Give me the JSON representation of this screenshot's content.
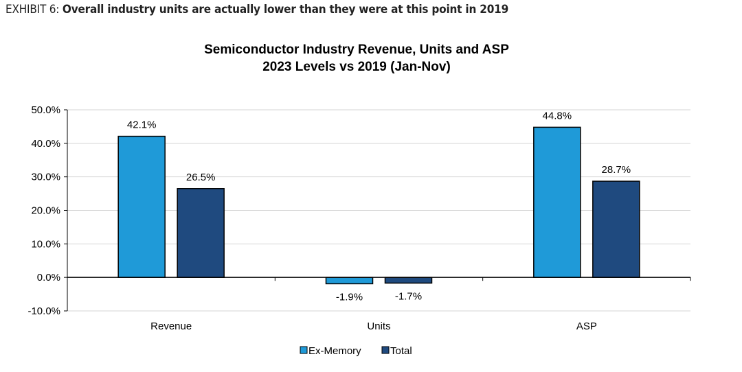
{
  "exhibit": {
    "label": "EXHIBIT 6:",
    "headline": "Overall industry units are actually lower than they were at this point in 2019"
  },
  "chart_data": {
    "type": "bar",
    "title": "Semiconductor Industry Revenue, Units and ASP",
    "subtitle": "2023 Levels vs 2019 (Jan-Nov)",
    "categories": [
      "Revenue",
      "Units",
      "ASP"
    ],
    "series": [
      {
        "name": "Ex-Memory",
        "values": [
          42.1,
          -1.9,
          44.8
        ],
        "labels": [
          "42.1%",
          "-1.9%",
          "44.8%"
        ],
        "color": "#1f9ad8"
      },
      {
        "name": "Total",
        "values": [
          26.5,
          -1.7,
          28.7
        ],
        "labels": [
          "26.5%",
          "-1.7%",
          "28.7%"
        ],
        "color": "#1f4a7f"
      }
    ],
    "ylim": [
      -10,
      50
    ],
    "yticks": [
      -10,
      0,
      10,
      20,
      30,
      40,
      50
    ],
    "ytick_labels": [
      "-10.0%",
      "0.0%",
      "10.0%",
      "20.0%",
      "30.0%",
      "40.0%",
      "50.0%"
    ],
    "grid": true,
    "legend": "bottom-center",
    "xlabel": "",
    "ylabel": ""
  }
}
